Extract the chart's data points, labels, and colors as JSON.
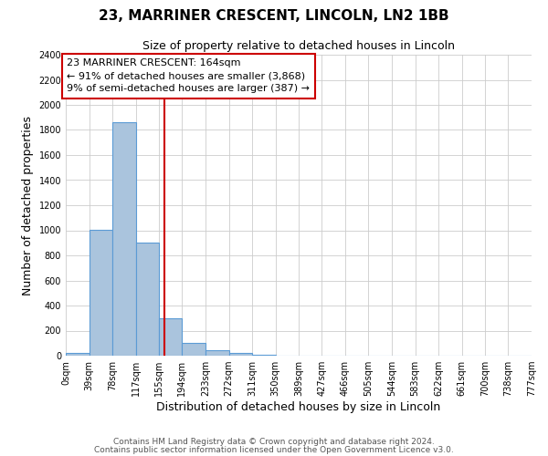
{
  "title": "23, MARRINER CRESCENT, LINCOLN, LN2 1BB",
  "subtitle": "Size of property relative to detached houses in Lincoln",
  "xlabel": "Distribution of detached houses by size in Lincoln",
  "ylabel": "Number of detached properties",
  "bar_edges": [
    0,
    39,
    78,
    117,
    155,
    194,
    233,
    272,
    311,
    350,
    389,
    427,
    466,
    505,
    544,
    583,
    622,
    661,
    700,
    738,
    777
  ],
  "bar_values": [
    25,
    1005,
    1860,
    900,
    300,
    100,
    45,
    20,
    5,
    0,
    0,
    0,
    0,
    0,
    0,
    0,
    0,
    0,
    0,
    0
  ],
  "tick_labels": [
    "0sqm",
    "39sqm",
    "78sqm",
    "117sqm",
    "155sqm",
    "194sqm",
    "233sqm",
    "272sqm",
    "311sqm",
    "350sqm",
    "389sqm",
    "427sqm",
    "466sqm",
    "505sqm",
    "544sqm",
    "583sqm",
    "622sqm",
    "661sqm",
    "700sqm",
    "738sqm",
    "777sqm"
  ],
  "bar_color": "#aac4dd",
  "bar_edge_color": "#5b9bd5",
  "vline_x": 164,
  "vline_color": "#cc0000",
  "annotation_text": "23 MARRINER CRESCENT: 164sqm\n← 91% of detached houses are smaller (3,868)\n9% of semi-detached houses are larger (387) →",
  "annotation_box_color": "#ffffff",
  "annotation_box_edge": "#cc0000",
  "ylim": [
    0,
    2400
  ],
  "yticks": [
    0,
    200,
    400,
    600,
    800,
    1000,
    1200,
    1400,
    1600,
    1800,
    2000,
    2200,
    2400
  ],
  "footer_line1": "Contains HM Land Registry data © Crown copyright and database right 2024.",
  "footer_line2": "Contains public sector information licensed under the Open Government Licence v3.0.",
  "background_color": "#ffffff",
  "grid_color": "#cccccc",
  "title_fontsize": 11,
  "subtitle_fontsize": 9,
  "axis_label_fontsize": 9,
  "tick_fontsize": 7,
  "annotation_fontsize": 8,
  "footer_fontsize": 6.5
}
